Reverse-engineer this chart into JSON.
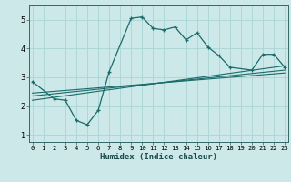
{
  "title": "",
  "xlabel": "Humidex (Indice chaleur)",
  "bg_color": "#cce8e8",
  "line_color": "#1a6b6b",
  "grid_color": "#aad4d4",
  "line1_x": [
    0,
    2,
    3,
    4,
    5,
    6,
    7,
    9,
    10,
    11,
    12,
    13,
    14,
    15,
    16,
    17,
    18,
    20,
    21,
    22,
    23
  ],
  "line1_y": [
    2.85,
    2.25,
    2.2,
    1.5,
    1.35,
    1.85,
    3.2,
    5.05,
    5.1,
    4.7,
    4.65,
    4.75,
    4.3,
    4.55,
    4.05,
    3.75,
    3.35,
    3.25,
    3.8,
    3.8,
    3.35
  ],
  "line2_x": [
    0,
    23
  ],
  "line2_y": [
    2.2,
    3.4
  ],
  "line3_x": [
    0,
    23
  ],
  "line3_y": [
    2.35,
    3.25
  ],
  "line4_x": [
    0,
    23
  ],
  "line4_y": [
    2.45,
    3.15
  ],
  "xlim": [
    -0.3,
    23.3
  ],
  "ylim": [
    0.75,
    5.5
  ],
  "yticks": [
    1,
    2,
    3,
    4,
    5
  ],
  "xticks": [
    0,
    1,
    2,
    3,
    4,
    5,
    6,
    7,
    8,
    9,
    10,
    11,
    12,
    13,
    14,
    15,
    16,
    17,
    18,
    19,
    20,
    21,
    22,
    23
  ]
}
